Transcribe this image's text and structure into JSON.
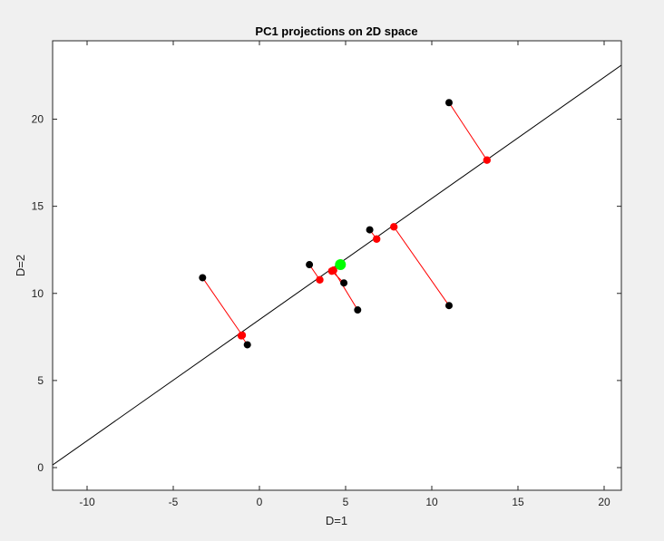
{
  "chart_data": {
    "type": "scatter",
    "title": "PC1 projections on 2D space",
    "xlabel": "D=1",
    "ylabel": "D=2",
    "xlim": [
      -12,
      21
    ],
    "ylim": [
      -1.3,
      24.5
    ],
    "xticks": [
      -10,
      -5,
      0,
      5,
      10,
      15,
      20
    ],
    "yticks": [
      0,
      5,
      10,
      15,
      20
    ],
    "grid": false,
    "colors": {
      "background": "#f0f0f0",
      "plot_area": "#ffffff",
      "data_points": "#000000",
      "projections": "#ff0000",
      "projection_lines": "#ff0000",
      "mean": "#00ff00",
      "pc1_line": "#000000"
    },
    "pc1_line": {
      "start": [
        -12,
        0.15
      ],
      "end": [
        21,
        23.1
      ]
    },
    "mean_point": [
      4.7,
      11.65
    ],
    "data_points": [
      [
        -3.3,
        10.9
      ],
      [
        -0.7,
        7.05
      ],
      [
        2.9,
        11.65
      ],
      [
        4.9,
        10.6
      ],
      [
        5.7,
        9.05
      ],
      [
        6.4,
        13.65
      ],
      [
        11.0,
        9.3
      ],
      [
        11.0,
        20.95
      ]
    ],
    "projections": [
      [
        -1.0,
        7.6
      ],
      [
        -1.05,
        7.57
      ],
      [
        3.5,
        10.78
      ],
      [
        4.2,
        11.28
      ],
      [
        4.3,
        11.33
      ],
      [
        6.8,
        13.12
      ],
      [
        7.8,
        13.82
      ],
      [
        13.2,
        17.65
      ]
    ]
  }
}
